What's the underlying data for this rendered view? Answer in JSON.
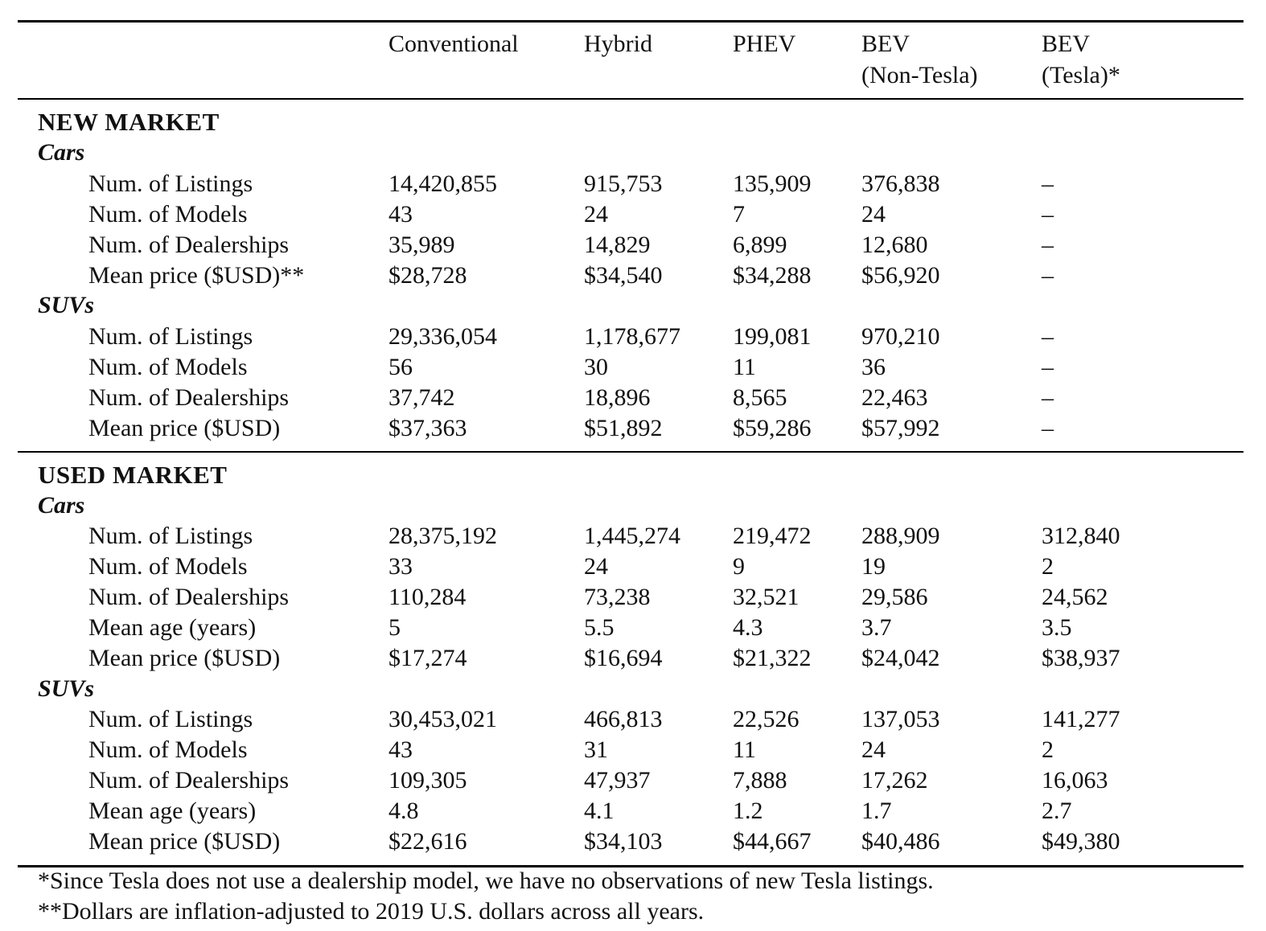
{
  "table": {
    "columns": [
      {
        "line1": "Conventional",
        "line2": ""
      },
      {
        "line1": "Hybrid",
        "line2": ""
      },
      {
        "line1": "PHEV",
        "line2": ""
      },
      {
        "line1": "BEV",
        "line2": "(Non-Tesla)"
      },
      {
        "line1": "BEV",
        "line2": "(Tesla)*"
      }
    ],
    "new_market": {
      "title": "NEW MARKET",
      "cars": {
        "title": "Cars",
        "rows": [
          {
            "metric": "Num. of Listings",
            "values": [
              "14,420,855",
              "915,753",
              "135,909",
              "376,838",
              "–"
            ]
          },
          {
            "metric": "Num. of Models",
            "values": [
              "43",
              "24",
              "7",
              "24",
              "–"
            ]
          },
          {
            "metric": "Num. of Dealerships",
            "values": [
              "35,989",
              "14,829",
              "6,899",
              "12,680",
              "–"
            ]
          },
          {
            "metric": "Mean price ($USD)**",
            "values": [
              "$28,728",
              "$34,540",
              "$34,288",
              "$56,920",
              "–"
            ]
          }
        ]
      },
      "suvs": {
        "title": "SUVs",
        "rows": [
          {
            "metric": "Num. of Listings",
            "values": [
              "29,336,054",
              "1,178,677",
              "199,081",
              "970,210",
              "–"
            ]
          },
          {
            "metric": "Num. of Models",
            "values": [
              "56",
              "30",
              "11",
              "36",
              "–"
            ]
          },
          {
            "metric": "Num. of Dealerships",
            "values": [
              "37,742",
              "18,896",
              "8,565",
              "22,463",
              "–"
            ]
          },
          {
            "metric": "Mean price ($USD)",
            "values": [
              "$37,363",
              "$51,892",
              "$59,286",
              "$57,992",
              "–"
            ]
          }
        ]
      }
    },
    "used_market": {
      "title": "USED MARKET",
      "cars": {
        "title": "Cars",
        "rows": [
          {
            "metric": "Num. of Listings",
            "values": [
              "28,375,192",
              "1,445,274",
              "219,472",
              "288,909",
              "312,840"
            ]
          },
          {
            "metric": "Num. of Models",
            "values": [
              "33",
              "24",
              "9",
              "19",
              "2"
            ]
          },
          {
            "metric": "Num. of Dealerships",
            "values": [
              "110,284",
              "73,238",
              "32,521",
              "29,586",
              "24,562"
            ]
          },
          {
            "metric": "Mean age (years)",
            "values": [
              "5",
              "5.5",
              "4.3",
              "3.7",
              "3.5"
            ]
          },
          {
            "metric": "Mean price ($USD)",
            "values": [
              "$17,274",
              "$16,694",
              "$21,322",
              "$24,042",
              "$38,937"
            ]
          }
        ]
      },
      "suvs": {
        "title": "SUVs",
        "rows": [
          {
            "metric": "Num. of Listings",
            "values": [
              "30,453,021",
              "466,813",
              "22,526",
              "137,053",
              "141,277"
            ]
          },
          {
            "metric": "Num. of Models",
            "values": [
              "43",
              "31",
              "11",
              "24",
              "2"
            ]
          },
          {
            "metric": "Num. of Dealerships",
            "values": [
              "109,305",
              "47,937",
              "7,888",
              "17,262",
              "16,063"
            ]
          },
          {
            "metric": "Mean age (years)",
            "values": [
              "4.8",
              "4.1",
              "1.2",
              "1.7",
              "2.7"
            ]
          },
          {
            "metric": "Mean price ($USD)",
            "values": [
              "$22,616",
              "$34,103",
              "$44,667",
              "$40,486",
              "$49,380"
            ]
          }
        ]
      }
    },
    "footnotes": [
      "*Since Tesla does not use a dealership model, we have no observations of new Tesla listings.",
      "**Dollars are inflation-adjusted to 2019 U.S. dollars across all years."
    ]
  }
}
